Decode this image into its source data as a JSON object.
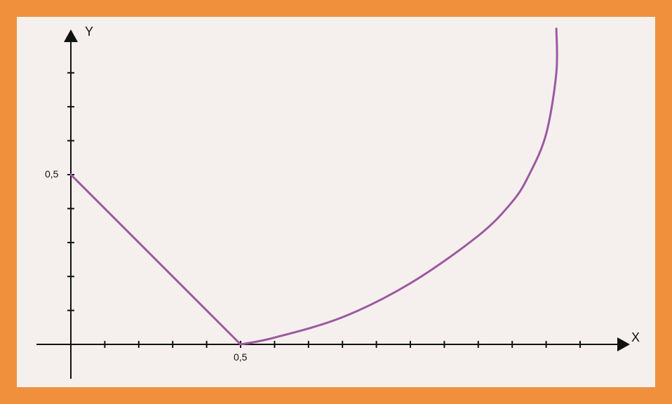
{
  "colors": {
    "frame": "#f0903d",
    "background": "#f5f0ee",
    "axis": "#111111",
    "curve": "#9b59a0"
  },
  "chart_data": {
    "type": "line",
    "xlabel": "X",
    "ylabel": "Y",
    "x_tick_label": "0,5",
    "y_tick_label": "0,5",
    "x_tick_step": 0.1,
    "y_tick_step": 0.1,
    "xlim": [
      0,
      1.6
    ],
    "ylim": [
      0,
      0.9
    ],
    "grid": false,
    "series": [
      {
        "type": "linear",
        "points": [
          [
            0,
            0.5
          ],
          [
            0.5,
            0
          ]
        ]
      },
      {
        "type": "curve",
        "points": [
          [
            0.5,
            0
          ],
          [
            0.6,
            0.02
          ],
          [
            0.8,
            0.08
          ],
          [
            1.0,
            0.18
          ],
          [
            1.2,
            0.32
          ],
          [
            1.3,
            0.42
          ],
          [
            1.35,
            0.5
          ],
          [
            1.4,
            0.62
          ],
          [
            1.43,
            0.8
          ],
          [
            1.43,
            0.93
          ]
        ]
      }
    ]
  }
}
